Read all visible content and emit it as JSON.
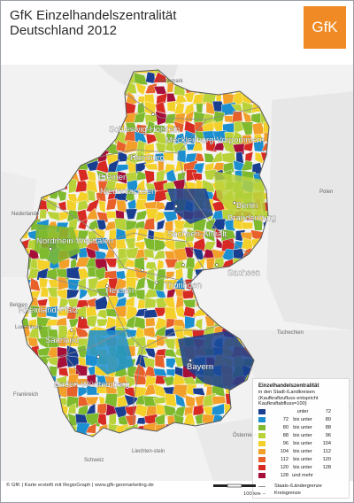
{
  "title": {
    "line1": "GfK Einzelhandelszentralität",
    "line2": "Deutschland 2012"
  },
  "logo": {
    "text": "GfK"
  },
  "states": [
    "Schleswig-Holstein",
    "Mecklenburg-Vorpommern",
    "Hamburg",
    "Bremen",
    "Niedersachsen",
    "Berlin",
    "Brandenburg",
    "Nordrhein-Westfalen",
    "Sachsen-Anhalt",
    "Sachsen",
    "Hessen",
    "Thüringen",
    "Rheinland-Pfalz",
    "Saarland",
    "Bayern",
    "Baden-Württemberg"
  ],
  "neighbors": [
    "Dänemark",
    "Nederlande",
    "Polen",
    "Belgien",
    "Luxemburg",
    "Tschechien",
    "Frankreich",
    "Österreich",
    "Schweiz",
    "Liechten-stein"
  ],
  "legend": {
    "title": "Einzelhandelszentralität",
    "subtitle": "in den Stadt-/Landkreisen",
    "note": "(Kaufkraftzufluss entspricht Kaufkraftabfluss=100)",
    "rows": [
      {
        "from": "",
        "word": "unter",
        "to": "72",
        "color": "#1a3f91"
      },
      {
        "from": "72",
        "word": "bis unter",
        "to": "80",
        "color": "#1b8fd0"
      },
      {
        "from": "80",
        "word": "bis unter",
        "to": "88",
        "color": "#7fba2e"
      },
      {
        "from": "88",
        "word": "bis unter",
        "to": "96",
        "color": "#b9d23a"
      },
      {
        "from": "96",
        "word": "bis unter",
        "to": "104",
        "color": "#f3d12a"
      },
      {
        "from": "104",
        "word": "bis unter",
        "to": "112",
        "color": "#f2a02a"
      },
      {
        "from": "112",
        "word": "bis unter",
        "to": "120",
        "color": "#e8602a"
      },
      {
        "from": "120",
        "word": "bis unter",
        "to": "128",
        "color": "#d62a22"
      },
      {
        "from": "128",
        "word": "und mehr",
        "to": "",
        "color": "#a50f3a"
      }
    ],
    "lines": [
      "Staats-/Ländergrenze",
      "Kreisgrenze"
    ]
  },
  "credit": "© GfK | Karte erstellt mit RegioGraph | www.gfk-geomarketing.de",
  "scale": {
    "label": "100 km"
  }
}
